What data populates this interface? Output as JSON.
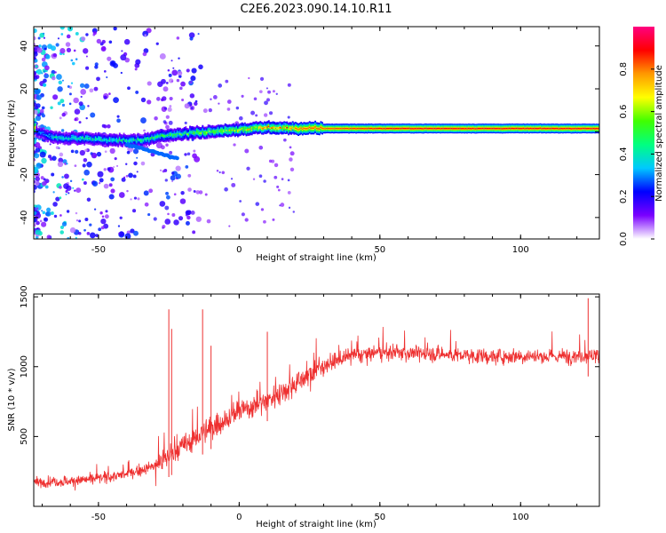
{
  "title": "C2E6.2023.090.14.10.R11",
  "chart_data": [
    {
      "type": "heatmap",
      "xlabel": "Height of straight line (km)",
      "ylabel": "Frequency (Hz)",
      "xlim": [
        -73,
        128
      ],
      "ylim": [
        -50,
        49
      ],
      "x_ticks": [
        -50,
        0,
        50,
        100
      ],
      "y_ticks": [
        -40,
        -20,
        0,
        20,
        40
      ],
      "x_tick_labels": [
        "-50",
        "0",
        "50",
        "100"
      ],
      "y_tick_labels": [
        "-40",
        "-20",
        "0",
        "20",
        "40"
      ],
      "colorbar": {
        "label": "Normalized spectral amplitude",
        "range": [
          0,
          1
        ],
        "ticks": [
          0.0,
          0.2,
          0.4,
          0.6,
          0.8
        ],
        "tick_labels": [
          "0.0",
          "0.2",
          "0.4",
          "0.6",
          "0.8"
        ],
        "colormap": [
          "#ffffff",
          "#7a00ff",
          "#0000ff",
          "#00c8ff",
          "#00ff80",
          "#40ff00",
          "#ffff00",
          "#ff9900",
          "#ff0000",
          "#ff0080"
        ]
      },
      "ridge": {
        "description_points": [
          {
            "x": -72,
            "y": 0,
            "amp": 0.3
          },
          {
            "x": -65,
            "y": -3,
            "amp": 0.4
          },
          {
            "x": -55,
            "y": -3,
            "amp": 0.45
          },
          {
            "x": -45,
            "y": -4,
            "amp": 0.45
          },
          {
            "x": -35,
            "y": -4,
            "amp": 0.45
          },
          {
            "x": -28,
            "y": -2,
            "amp": 0.5
          },
          {
            "x": -20,
            "y": -1,
            "amp": 0.55
          },
          {
            "x": -10,
            "y": 0,
            "amp": 0.6
          },
          {
            "x": 0,
            "y": 1,
            "amp": 0.7
          },
          {
            "x": 10,
            "y": 2,
            "amp": 0.75
          },
          {
            "x": 20,
            "y": 1.5,
            "amp": 0.8
          },
          {
            "x": 40,
            "y": 1.5,
            "amp": 0.85
          },
          {
            "x": 60,
            "y": 1.5,
            "amp": 0.9
          },
          {
            "x": 90,
            "y": 1.5,
            "amp": 0.9
          },
          {
            "x": 128,
            "y": 1.5,
            "amp": 0.9
          }
        ]
      }
    },
    {
      "type": "line",
      "xlabel": "Height of straight line (km)",
      "ylabel": "SNR (10 * v/v)",
      "xlim": [
        -73,
        128
      ],
      "ylim": [
        0,
        1520
      ],
      "x_ticks": [
        -50,
        0,
        50,
        100
      ],
      "y_ticks": [
        500,
        1000,
        1500
      ],
      "x_tick_labels": [
        "-50",
        "0",
        "50",
        "100"
      ],
      "y_tick_labels": [
        "500",
        "1000",
        "1500"
      ],
      "series": [
        {
          "color": "#ee3030",
          "trend": {
            "x": [
              -73,
              -60,
              -50,
              -40,
              -30,
              -20,
              -10,
              0,
              10,
              20,
              30,
              40,
              50,
              60,
              70,
              80,
              90,
              100,
              110,
              120,
              128
            ],
            "y": [
              170,
              180,
              200,
              230,
              290,
              430,
              560,
              680,
              760,
              880,
              1010,
              1080,
              1100,
              1100,
              1090,
              1080,
              1070,
              1080,
              1070,
              1080,
              1080
            ]
          },
          "spikes": [
            {
              "x": -25,
              "y": 1410
            },
            {
              "x": -24,
              "y": 1270
            },
            {
              "x": -13,
              "y": 1410
            },
            {
              "x": -10,
              "y": 1150
            },
            {
              "x": 10,
              "y": 1250
            },
            {
              "x": 124,
              "y": 1490
            }
          ]
        }
      ]
    }
  ]
}
